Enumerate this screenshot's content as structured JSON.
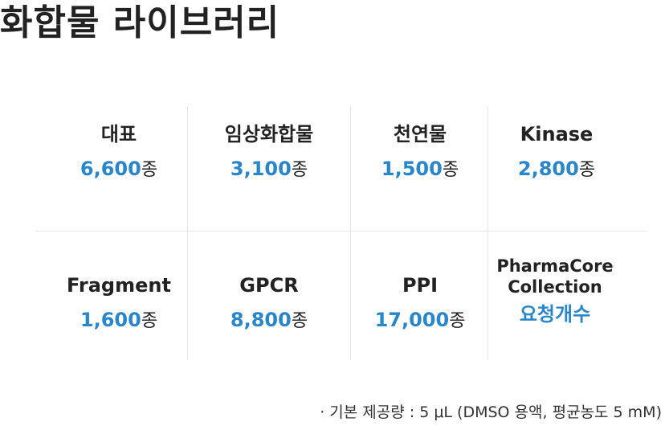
{
  "title": "화합물 라이브러리",
  "libraries": [
    {
      "name": "대표",
      "count": "6,600",
      "unit": "종"
    },
    {
      "name": "임상화합물",
      "count": "3,100",
      "unit": "종"
    },
    {
      "name": "천연물",
      "count": "1,500",
      "unit": "종"
    },
    {
      "name": "Kinase",
      "count": "2,800",
      "unit": "종"
    },
    {
      "name": "Fragment",
      "count": "1,600",
      "unit": "종"
    },
    {
      "name": "GPCR",
      "count": "8,800",
      "unit": "종"
    },
    {
      "name": "PPI",
      "count": "17,000",
      "unit": "종"
    },
    {
      "name": "PharmaCore Collection",
      "count": "요청개수",
      "unit": ""
    }
  ],
  "footnote": "· 기본 제공량 : 5 μL (DMSO 용액, 평균농도 5 mM)",
  "colors": {
    "accent": "#2a86c9",
    "text": "#222222",
    "divider": "#e6e6e6"
  }
}
